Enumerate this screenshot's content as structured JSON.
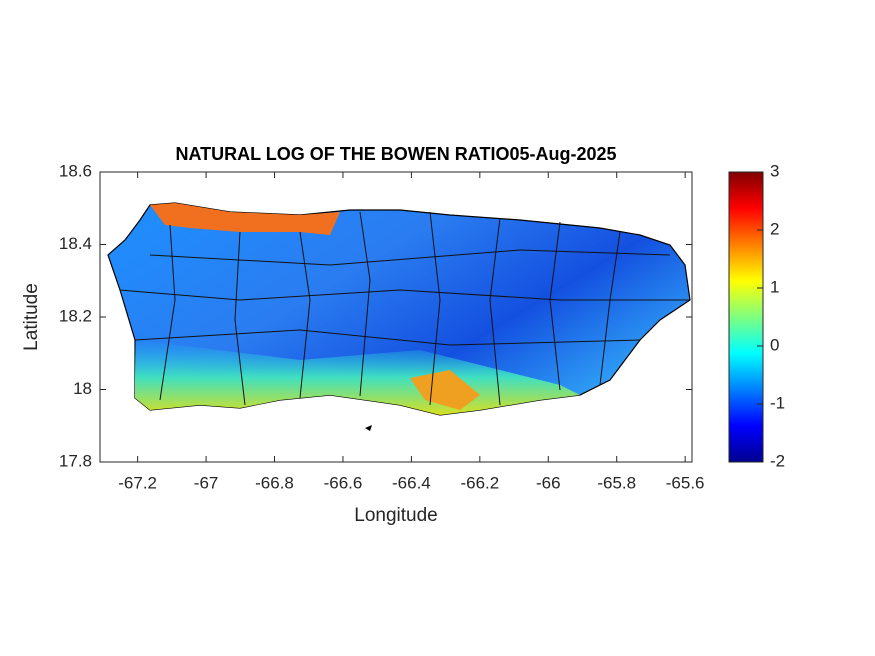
{
  "chart_data": {
    "type": "heatmap",
    "title": "NATURAL LOG OF THE BOWEN RATIO05-Aug-2025",
    "xlabel": "Longitude",
    "ylabel": "Latitude",
    "xlim": [
      -67.31,
      -65.58
    ],
    "xticks": [
      -67.2,
      -67,
      -66.8,
      -66.6,
      -66.4,
      -66.2,
      -66,
      -65.8,
      -65.6
    ],
    "ylim": [
      17.8,
      18.6
    ],
    "yticks": [
      17.8,
      18,
      18.2,
      18.4,
      18.6
    ],
    "colorbar": {
      "lim": [
        -2,
        3
      ],
      "ticks": [
        -2,
        -1,
        0,
        1,
        2,
        3
      ],
      "colormap": "jet"
    }
  }
}
